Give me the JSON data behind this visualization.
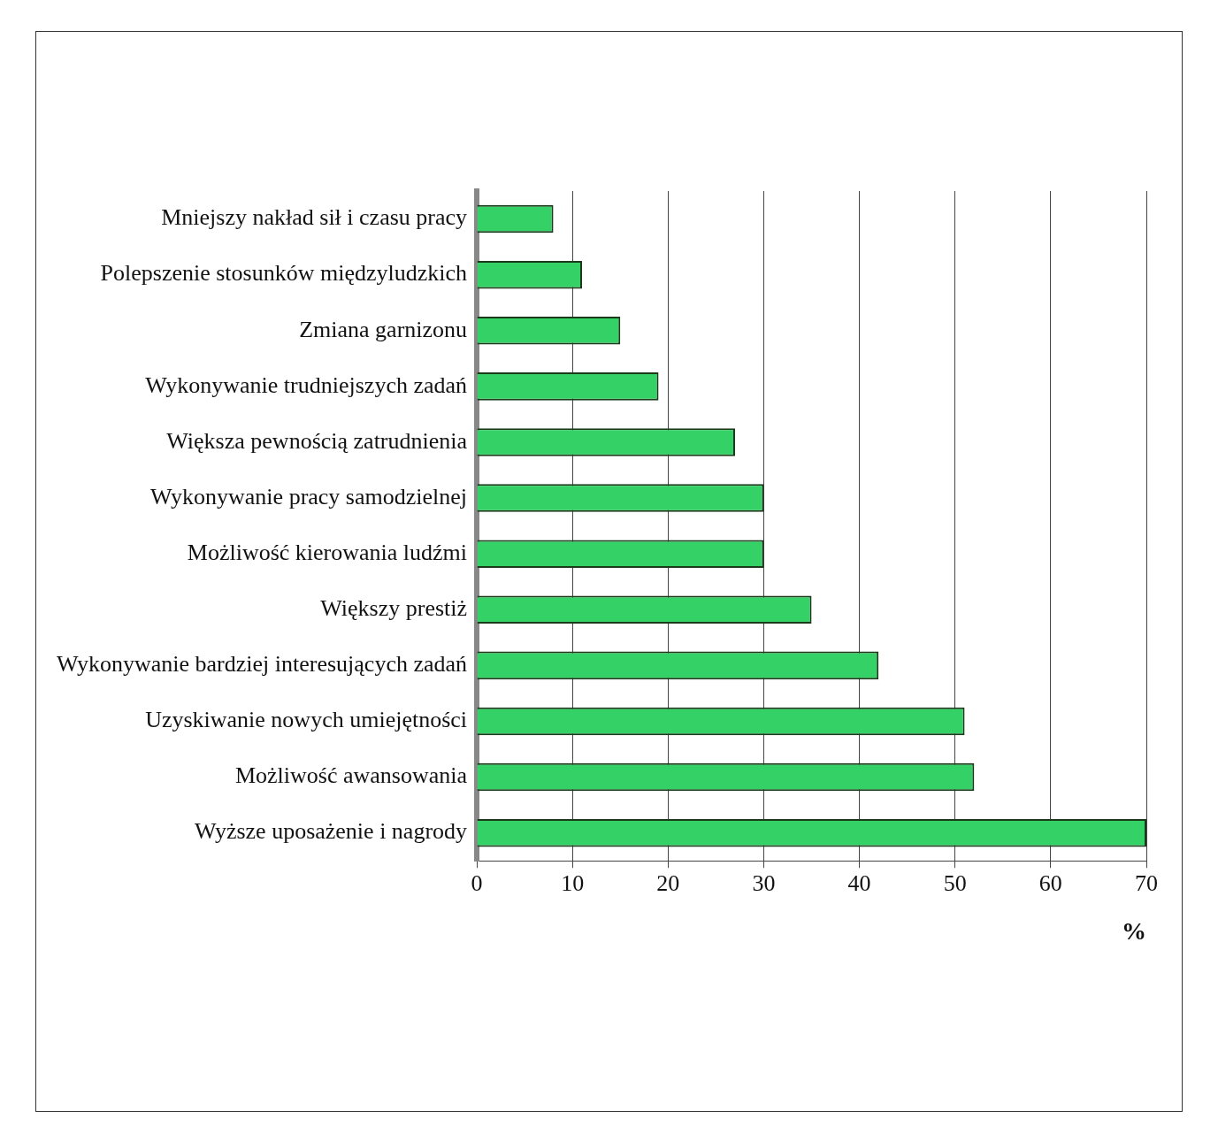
{
  "chart_data": {
    "type": "bar",
    "orientation": "horizontal",
    "categories": [
      "Mniejszy nakład sił i czasu pracy",
      "Polepszenie stosunków międzyludzkich",
      "Zmiana garnizonu",
      "Wykonywanie trudniejszych zadań",
      "Większa pewnością zatrudnienia",
      "Wykonywanie pracy samodzielnej",
      "Możliwość kierowania ludźmi",
      "Większy prestiż",
      "Wykonywanie bardziej interesujących zadań",
      "Uzyskiwanie nowych umiejętności",
      "Możliwość awansowania",
      "Wyższe uposażenie i nagrody"
    ],
    "values": [
      8,
      11,
      15,
      19,
      27,
      30,
      30,
      35,
      42,
      51,
      52,
      70
    ],
    "color": "#33d166",
    "xlabel": "%",
    "xlim": [
      0,
      70
    ],
    "xticks": [
      0,
      10,
      20,
      30,
      40,
      50,
      60,
      70
    ],
    "grid": "x",
    "legend": false
  }
}
